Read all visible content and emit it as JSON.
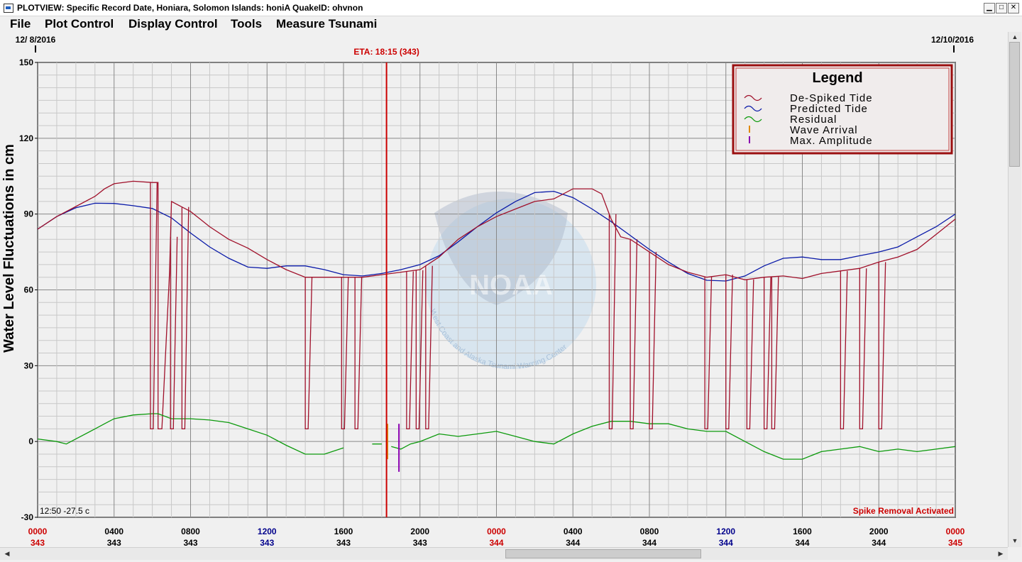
{
  "window": {
    "title": "PLOTVIEW: Specific Record Date, Honiara, Solomon Islands: honiA     QuakeID: ohvnon",
    "minimize": "▁",
    "maximize": "□",
    "close": "✕"
  },
  "menu": [
    "File",
    "Plot Control",
    "Display Control",
    "Tools",
    "Measure Tsunami"
  ],
  "header": {
    "start_date": "12/ 8/2016",
    "end_date": "12/10/2016",
    "eta_label": "ETA: 18:15 (343)"
  },
  "plot": {
    "cursor_readout": "12:50 -27.5 c",
    "status": "Spike Removal Activated",
    "watermark": "NOAA",
    "watermark_ring_text": "West Coast and Alaska Tsunami Warning Center"
  },
  "legend": {
    "title": "Legend",
    "items": [
      {
        "label": "De-Spiked Tide",
        "color": "#a0102a",
        "icon": "wave-icon"
      },
      {
        "label": "Predicted Tide",
        "color": "#0a1aa8",
        "icon": "wave-icon"
      },
      {
        "label": "Residual",
        "color": "#0c9a0c",
        "icon": "wave-icon"
      },
      {
        "label": "Wave Arrival",
        "color": "#e08a00",
        "icon": "tick-icon"
      },
      {
        "label": "Max. Amplitude",
        "color": "#8a00b0",
        "icon": "tick-icon"
      }
    ]
  },
  "chart_data": {
    "type": "line",
    "ylabel": "Water Level Fluctuations in cm",
    "ylim": [
      -30,
      150
    ],
    "yticks": [
      150,
      120,
      90,
      60,
      30,
      0,
      -30
    ],
    "x_unit": "hours since 0000 day 343",
    "xlim": [
      0,
      48
    ],
    "xticks": [
      {
        "time": "0000",
        "day": "343",
        "time_color": "#cc0000",
        "day_color": "#cc0000"
      },
      {
        "time": "0400",
        "day": "343",
        "time_color": "#000000",
        "day_color": "#000000"
      },
      {
        "time": "0800",
        "day": "343",
        "time_color": "#000000",
        "day_color": "#000000"
      },
      {
        "time": "1200",
        "day": "343",
        "time_color": "#00008b",
        "day_color": "#00008b"
      },
      {
        "time": "1600",
        "day": "343",
        "time_color": "#000000",
        "day_color": "#000000"
      },
      {
        "time": "2000",
        "day": "343",
        "time_color": "#000000",
        "day_color": "#000000"
      },
      {
        "time": "0000",
        "day": "344",
        "time_color": "#cc0000",
        "day_color": "#cc0000"
      },
      {
        "time": "0400",
        "day": "344",
        "time_color": "#000000",
        "day_color": "#000000"
      },
      {
        "time": "0800",
        "day": "344",
        "time_color": "#000000",
        "day_color": "#000000"
      },
      {
        "time": "1200",
        "day": "344",
        "time_color": "#00008b",
        "day_color": "#00008b"
      },
      {
        "time": "1600",
        "day": "344",
        "time_color": "#000000",
        "day_color": "#000000"
      },
      {
        "time": "2000",
        "day": "344",
        "time_color": "#000000",
        "day_color": "#000000"
      },
      {
        "time": "0000",
        "day": "345",
        "time_color": "#cc0000",
        "day_color": "#cc0000"
      }
    ],
    "eta_hour": 18.25,
    "grid": true,
    "legend_position": "top-right",
    "series": [
      {
        "name": "Predicted Tide",
        "color": "#0a1aa8",
        "points": [
          [
            0,
            84
          ],
          [
            1,
            89
          ],
          [
            2,
            92.5
          ],
          [
            3,
            94.3
          ],
          [
            4,
            94.2
          ],
          [
            5,
            93.3
          ],
          [
            6,
            92.2
          ],
          [
            7,
            88.5
          ],
          [
            8,
            82.5
          ],
          [
            9,
            77
          ],
          [
            10,
            72.5
          ],
          [
            11,
            69
          ],
          [
            12,
            68.5
          ],
          [
            13,
            69.5
          ],
          [
            14,
            69.5
          ],
          [
            15,
            68
          ],
          [
            16,
            66
          ],
          [
            17,
            65.5
          ],
          [
            18,
            66.5
          ],
          [
            19,
            68
          ],
          [
            20,
            70
          ],
          [
            21,
            73.5
          ],
          [
            22,
            79
          ],
          [
            23,
            85
          ],
          [
            24,
            90.5
          ],
          [
            25,
            95
          ],
          [
            26,
            98.5
          ],
          [
            27,
            99
          ],
          [
            28,
            96.5
          ],
          [
            29,
            92
          ],
          [
            30,
            87
          ],
          [
            31,
            81.5
          ],
          [
            32,
            76
          ],
          [
            33,
            71
          ],
          [
            34,
            66.5
          ],
          [
            35,
            63.8
          ],
          [
            36,
            63.5
          ],
          [
            37,
            65.5
          ],
          [
            38,
            69.5
          ],
          [
            39,
            72.5
          ],
          [
            40,
            73
          ],
          [
            41,
            72
          ],
          [
            42,
            72
          ],
          [
            43,
            73.5
          ],
          [
            44,
            75
          ],
          [
            45,
            77
          ],
          [
            46,
            81
          ],
          [
            47,
            85
          ],
          [
            48,
            90
          ]
        ]
      },
      {
        "name": "De-Spiked Tide",
        "color": "#a0102a",
        "points": [
          [
            0,
            84
          ],
          [
            1,
            89
          ],
          [
            2,
            93
          ],
          [
            3,
            97
          ],
          [
            3.5,
            100
          ],
          [
            4,
            102
          ],
          [
            5,
            103
          ],
          [
            6,
            102.5
          ],
          [
            6.3,
            102.5
          ],
          [
            6.3,
            5
          ],
          [
            6.5,
            5
          ],
          [
            6.9,
            67
          ],
          [
            7,
            95
          ],
          [
            8,
            91
          ],
          [
            8.5,
            88
          ],
          [
            9,
            85
          ],
          [
            10,
            80
          ],
          [
            11,
            76.5
          ],
          [
            12,
            72
          ],
          [
            13,
            68
          ],
          [
            14,
            65
          ],
          [
            15,
            65
          ],
          [
            16,
            65
          ],
          [
            17,
            65
          ],
          [
            18,
            66
          ],
          [
            19,
            67
          ],
          [
            20,
            68
          ],
          [
            21,
            73
          ],
          [
            22,
            80
          ],
          [
            23,
            85
          ],
          [
            24,
            89
          ],
          [
            25,
            92
          ],
          [
            26,
            95
          ],
          [
            27,
            96
          ],
          [
            28,
            100
          ],
          [
            29,
            100
          ],
          [
            29.5,
            98
          ],
          [
            30,
            88
          ],
          [
            30.5,
            81
          ],
          [
            31,
            80
          ],
          [
            32,
            75
          ],
          [
            33,
            70
          ],
          [
            34,
            67
          ],
          [
            35,
            65
          ],
          [
            36,
            66
          ],
          [
            37,
            64
          ],
          [
            38,
            65
          ],
          [
            39,
            65.5
          ],
          [
            40,
            64.5
          ],
          [
            41,
            66.5
          ],
          [
            42,
            67.5
          ],
          [
            43,
            68.5
          ],
          [
            44,
            71
          ],
          [
            45,
            73
          ],
          [
            46,
            76
          ],
          [
            47,
            82
          ],
          [
            48,
            88
          ]
        ]
      },
      {
        "name": "Residual",
        "color": "#0c9a0c",
        "points": [
          [
            0,
            1
          ],
          [
            1,
            0
          ],
          [
            1.5,
            -1
          ],
          [
            2,
            1
          ],
          [
            3,
            5
          ],
          [
            3.5,
            7
          ],
          [
            4,
            9
          ],
          [
            5,
            10.5
          ],
          [
            6,
            11
          ],
          [
            6.3,
            11
          ],
          [
            7,
            9
          ],
          [
            8,
            9
          ],
          [
            9,
            8.5
          ],
          [
            10,
            7.5
          ],
          [
            11,
            5
          ],
          [
            12,
            2.5
          ],
          [
            13,
            -1.5
          ],
          [
            14,
            -5
          ],
          [
            15,
            -5
          ],
          [
            16,
            -2.5
          ],
          [
            17,
            null
          ],
          [
            17.5,
            -1
          ],
          [
            18,
            -1
          ],
          [
            18.3,
            null
          ],
          [
            18.5,
            -2
          ],
          [
            19,
            -3
          ],
          [
            19.5,
            -1
          ],
          [
            20,
            0
          ],
          [
            21,
            3
          ],
          [
            22,
            2
          ],
          [
            23,
            3
          ],
          [
            24,
            4
          ],
          [
            25,
            2
          ],
          [
            26,
            0
          ],
          [
            27,
            -1
          ],
          [
            28,
            3
          ],
          [
            29,
            6
          ],
          [
            30,
            8
          ],
          [
            31,
            8
          ],
          [
            32,
            7
          ],
          [
            33,
            7
          ],
          [
            34,
            5
          ],
          [
            35,
            4
          ],
          [
            36,
            4
          ],
          [
            37,
            0
          ],
          [
            38,
            -4
          ],
          [
            39,
            -7
          ],
          [
            40,
            -7
          ],
          [
            41,
            -4
          ],
          [
            42,
            -3
          ],
          [
            43,
            -2
          ],
          [
            44,
            -4
          ],
          [
            45,
            -3
          ],
          [
            46,
            -4
          ],
          [
            47,
            -3
          ],
          [
            48,
            -2
          ]
        ]
      }
    ],
    "spikes": [
      {
        "x": 5.9,
        "floor": 5
      },
      {
        "x": 6.95,
        "floor": 5
      },
      {
        "x": 7.55,
        "floor": 5
      },
      {
        "x": 14.0,
        "floor": 5
      },
      {
        "x": 15.9,
        "floor": 5
      },
      {
        "x": 16.6,
        "floor": 5
      },
      {
        "x": 19.3,
        "floor": 5
      },
      {
        "x": 19.8,
        "floor": 5
      },
      {
        "x": 20.3,
        "floor": 5
      },
      {
        "x": 29.9,
        "floor": 5
      },
      {
        "x": 31.0,
        "floor": 5
      },
      {
        "x": 32.0,
        "floor": 5
      },
      {
        "x": 34.9,
        "floor": 5
      },
      {
        "x": 36.0,
        "floor": 5
      },
      {
        "x": 37.1,
        "floor": 5
      },
      {
        "x": 38.0,
        "floor": 5
      },
      {
        "x": 38.4,
        "floor": 5
      },
      {
        "x": 42.0,
        "floor": 5
      },
      {
        "x": 43.0,
        "floor": 5
      },
      {
        "x": 44.0,
        "floor": 5
      }
    ],
    "wave_arrival_hour": 18.3,
    "max_amplitude_hour": 18.9
  }
}
